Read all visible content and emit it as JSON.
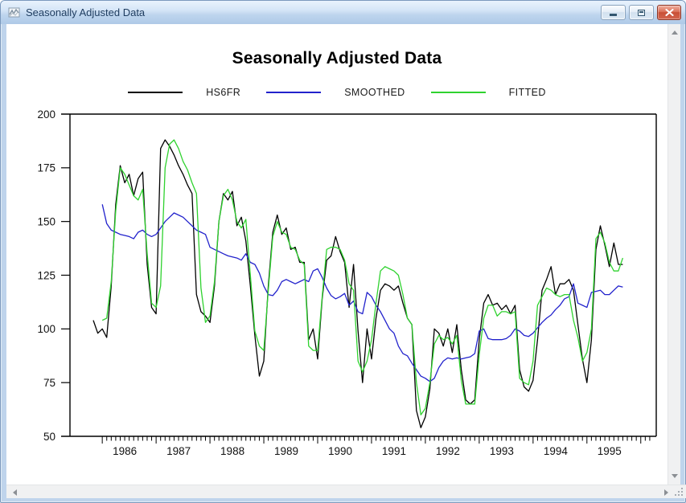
{
  "window": {
    "title": "Seasonally Adjusted Data",
    "icon": "graph-icon",
    "controls": {
      "minimize": "minimize",
      "restore": "restore",
      "close": "close"
    }
  },
  "chart_data": {
    "type": "line",
    "title": "Seasonally Adjusted Data",
    "frequency": "monthly",
    "x_start": "1985M11",
    "x_end": "1995M09",
    "ylim": [
      50,
      200
    ],
    "yticks": [
      200,
      175,
      150,
      125,
      100,
      75,
      50
    ],
    "year_labels": [
      "1986",
      "1987",
      "1988",
      "1989",
      "1990",
      "1991",
      "1992",
      "1993",
      "1994",
      "1995"
    ],
    "grid": false,
    "legend_position": "top",
    "series": [
      {
        "name": "HS6FR",
        "color": "#000000",
        "start_month_index": 0,
        "values": [
          104,
          98,
          100,
          96,
          120,
          158,
          176,
          168,
          172,
          162,
          170,
          173,
          130,
          110,
          107,
          184,
          188,
          185,
          181,
          176,
          172,
          167,
          163,
          116,
          108,
          106,
          103,
          120,
          150,
          163,
          160,
          164,
          148,
          152,
          141,
          120,
          97,
          78,
          85,
          120,
          145,
          153,
          144,
          147,
          137,
          138,
          131,
          131,
          95,
          100,
          86,
          114,
          132,
          134,
          143,
          136,
          131,
          110,
          130,
          99,
          75,
          100,
          86,
          105,
          118,
          121,
          120,
          118,
          120,
          112,
          105,
          102,
          62,
          54,
          59,
          72,
          100,
          98,
          92,
          100,
          89,
          102,
          81,
          67,
          65,
          67,
          95,
          112,
          116,
          111,
          112,
          109,
          111,
          107,
          111,
          81,
          73,
          71,
          76,
          95,
          118,
          123,
          129,
          116,
          121,
          121,
          123,
          118,
          102,
          86,
          75,
          95,
          137,
          148,
          139,
          129,
          140,
          130,
          130
        ]
      },
      {
        "name": "SMOOTHED",
        "color": "#2222cc",
        "start_month_index": 2,
        "values": [
          158,
          149,
          146,
          145,
          144,
          143.5,
          143,
          142,
          145,
          146,
          144,
          143,
          144,
          147,
          150,
          152,
          154,
          153,
          152,
          150,
          148,
          146,
          145,
          144,
          138,
          137,
          136,
          135,
          134,
          133.5,
          133,
          132,
          135,
          131,
          130,
          126,
          120,
          116,
          115.5,
          118,
          122,
          123,
          122,
          121,
          122,
          123,
          122,
          127,
          128,
          124,
          119,
          115.5,
          114,
          115,
          116.5,
          111,
          113,
          108,
          107,
          117,
          115,
          111,
          108,
          104,
          100,
          98,
          92,
          88.5,
          87.5,
          84,
          81,
          78,
          77,
          75.5,
          77,
          82,
          85,
          86.5,
          86,
          86.5,
          86,
          86.5,
          87,
          88.5,
          99,
          100,
          95.5,
          95,
          95,
          95,
          95.5,
          97,
          100,
          99,
          97,
          96.5,
          98,
          100.5,
          103,
          105,
          106.5,
          109,
          111,
          114,
          115,
          121,
          112,
          111,
          110,
          117,
          117.5,
          118,
          116,
          116,
          118,
          120,
          119.5
        ]
      },
      {
        "name": "FITTED",
        "color": "#2fd22f",
        "start_month_index": 2,
        "values": [
          104,
          105,
          122,
          155,
          175,
          172,
          167,
          162,
          160,
          165,
          135,
          112,
          110,
          120,
          175,
          186,
          188,
          184,
          178,
          174,
          168,
          163,
          119,
          103,
          106,
          122,
          150,
          162,
          165,
          160,
          150,
          147,
          151,
          125,
          99,
          92,
          90,
          118,
          143,
          150,
          145,
          144,
          138,
          137,
          132,
          130,
          92,
          90,
          90,
          115,
          137,
          138,
          138,
          137,
          132,
          121,
          118,
          85,
          80,
          85,
          95,
          112,
          127,
          129,
          128,
          127,
          125,
          116,
          105,
          102,
          75,
          60,
          63,
          75,
          93,
          97,
          95,
          96,
          93,
          97,
          76,
          65,
          65,
          65,
          88,
          105,
          111,
          111,
          106,
          108,
          108,
          107,
          108,
          77,
          75,
          74,
          85,
          111,
          115,
          119,
          118,
          116,
          115,
          116,
          116,
          104,
          96,
          85,
          89,
          100,
          142,
          145,
          140,
          131,
          127,
          127,
          133
        ]
      }
    ]
  },
  "scrollbar_icons": {
    "up": "up-arrow",
    "down": "down-arrow",
    "left": "left-arrow",
    "right": "right-arrow",
    "corner": "resize-grip"
  }
}
